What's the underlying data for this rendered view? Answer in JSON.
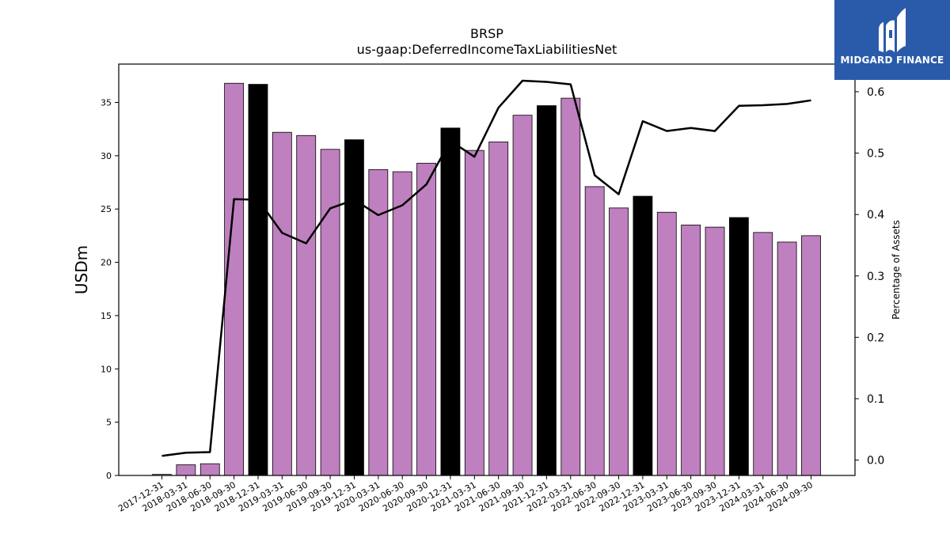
{
  "title": "BRSP",
  "subtitle": "us-gaap:DeferredIncomeTaxLiabilitiesNet",
  "logo_text": "MIDGARD FINANCE",
  "colors": {
    "bar_regular": "#bf80bf",
    "bar_year_end": "#000000",
    "line": "#000000",
    "logo_bg": "#2a5bab"
  },
  "chart_data": {
    "type": "bar",
    "categories": [
      "2017-12-31",
      "2018-03-31",
      "2018-06-30",
      "2018-09-30",
      "2018-12-31",
      "2019-03-31",
      "2019-06-30",
      "2019-09-30",
      "2019-12-31",
      "2020-03-31",
      "2020-06-30",
      "2020-09-30",
      "2020-12-31",
      "2021-03-31",
      "2021-06-30",
      "2021-09-30",
      "2021-12-31",
      "2022-03-31",
      "2022-06-30",
      "2022-09-30",
      "2022-12-31",
      "2023-03-31",
      "2023-06-30",
      "2023-09-30",
      "2023-12-31",
      "2024-03-31",
      "2024-06-30",
      "2024-09-30"
    ],
    "series": [
      {
        "values": [
          0.1,
          1.0,
          1.1,
          36.8,
          36.7,
          32.2,
          31.9,
          30.6,
          31.5,
          28.7,
          28.5,
          29.3,
          32.6,
          30.5,
          31.3,
          33.8,
          34.7,
          35.4,
          27.1,
          25.1,
          26.2,
          24.7,
          23.5,
          23.3,
          24.2,
          22.8,
          21.9,
          22.5
        ],
        "axis": "left",
        "render": "bar"
      },
      {
        "values": [
          0.007,
          0.012,
          0.013,
          0.425,
          0.424,
          0.37,
          0.353,
          0.41,
          0.424,
          0.399,
          0.415,
          0.449,
          0.52,
          0.494,
          0.574,
          0.618,
          0.616,
          0.612,
          0.464,
          0.433,
          0.552,
          0.536,
          0.541,
          0.536,
          0.577,
          0.578,
          0.58,
          0.586
        ],
        "axis": "right",
        "render": "line"
      }
    ],
    "year_end_categories": [
      "2018-12-31",
      "2019-12-31",
      "2020-12-31",
      "2021-12-31",
      "2022-12-31",
      "2023-12-31"
    ],
    "ylabel": "USDm",
    "ylabel_right": "Percentage of Assets",
    "ylim": [
      0,
      38.6
    ],
    "ylim_right": [
      -0.025,
      0.645
    ],
    "yticks": [
      0,
      5,
      10,
      15,
      20,
      25,
      30,
      35
    ],
    "yticks_right": [
      0.0,
      0.1,
      0.2,
      0.3,
      0.4,
      0.5,
      0.6
    ],
    "grid": false,
    "legend": "none"
  }
}
